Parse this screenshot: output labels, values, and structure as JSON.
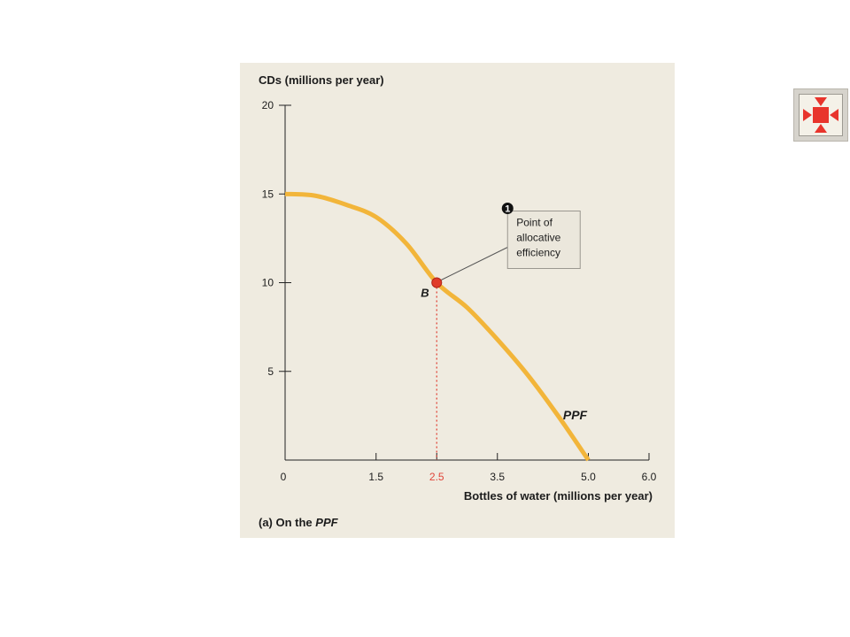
{
  "chart_data": {
    "type": "line",
    "ylabel": "CDs (millions per year)",
    "xlabel": "Bottles of water (millions per year)",
    "caption_prefix": "(a) On the ",
    "caption_em": "PPF",
    "xlim": [
      0,
      6.0
    ],
    "ylim": [
      0,
      20
    ],
    "x_ticks": [
      {
        "value": 0,
        "label": "0"
      },
      {
        "value": 1.5,
        "label": "1.5"
      },
      {
        "value": 2.5,
        "label": "2.5",
        "highlight": true
      },
      {
        "value": 3.5,
        "label": "3.5"
      },
      {
        "value": 5.0,
        "label": "5.0"
      },
      {
        "value": 6.0,
        "label": "6.0"
      }
    ],
    "y_ticks": [
      {
        "value": 5,
        "label": "5"
      },
      {
        "value": 10,
        "label": "10"
      },
      {
        "value": 15,
        "label": "15"
      },
      {
        "value": 20,
        "label": "20"
      }
    ],
    "series": [
      {
        "name": "PPF",
        "color": "#f2b53a",
        "x": [
          0,
          0.5,
          1.0,
          1.5,
          2.0,
          2.5,
          3.0,
          3.5,
          4.0,
          4.5,
          5.0
        ],
        "y": [
          15,
          14.9,
          14.4,
          13.7,
          12.2,
          10,
          8.6,
          6.8,
          4.8,
          2.5,
          0
        ]
      }
    ],
    "point": {
      "label": "B",
      "x": 2.5,
      "y": 10,
      "color": "#e03b2a"
    },
    "callout": {
      "number": "1",
      "lines": [
        "Point of",
        "allocative",
        "efficiency"
      ]
    },
    "highlight_color": "#e0463a"
  },
  "controls": {
    "expand_button": "expand-arrows-icon"
  }
}
